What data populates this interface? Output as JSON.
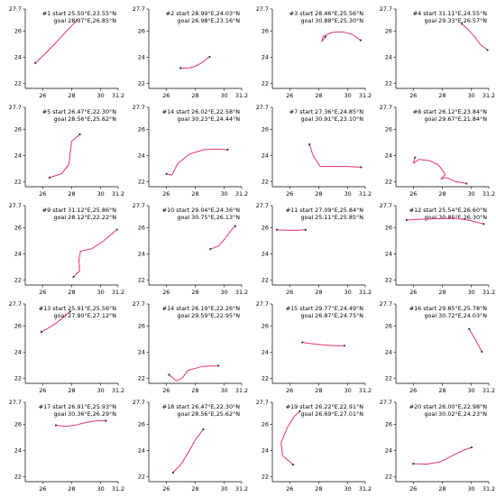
{
  "chart_data": {
    "type": "line",
    "layout": {
      "rows": 5,
      "cols": 4
    },
    "shared_axes": {
      "xlim": [
        24.8,
        31.2
      ],
      "ylim": [
        21.6,
        27.7
      ],
      "xticks": [
        26,
        28,
        30,
        31.2
      ],
      "yticks": [
        22,
        24,
        26,
        27.7
      ]
    },
    "line_color": "#e0356a",
    "axis_color": "#000000",
    "panels": [
      {
        "title_start": "#1 start 25.50°E,23.55°N",
        "title_goal": "goal 28.37°E,26.85°N",
        "x": [
          25.5,
          26.2,
          26.9,
          27.6,
          28.37
        ],
        "y": [
          23.55,
          24.3,
          25.1,
          25.95,
          26.85
        ]
      },
      {
        "title_start": "#2 start 28.99°E,24.03°N",
        "title_goal": "goal 26.98°E,23.16°N",
        "x": [
          28.99,
          28.5,
          28.0,
          27.5,
          26.98
        ],
        "y": [
          24.03,
          23.6,
          23.3,
          23.15,
          23.16
        ]
      },
      {
        "title_start": "#3 start 28.46°E,25.56°N",
        "title_goal": "goal 30.88°E,25.30°N",
        "x": [
          28.46,
          28.2,
          28.3,
          28.9,
          29.6,
          30.3,
          30.88
        ],
        "y": [
          25.56,
          25.2,
          25.6,
          25.9,
          25.95,
          25.75,
          25.3
        ]
      },
      {
        "title_start": "#4 start 31.11°E,24.55°N",
        "title_goal": "goal 29.33°E,26.57°N",
        "x": [
          31.11,
          30.6,
          30.2,
          29.8,
          29.33
        ],
        "y": [
          24.55,
          25.0,
          25.6,
          26.1,
          26.57
        ]
      },
      {
        "title_start": "#5 start 26.47°E,22.30°N",
        "title_goal": "goal 28.56°E,25.62°N",
        "x": [
          26.47,
          27.3,
          27.8,
          27.9,
          28.0,
          28.56
        ],
        "y": [
          22.3,
          22.6,
          23.3,
          24.2,
          25.1,
          25.62
        ]
      },
      {
        "title_start": "#14 start 26.02°E,22.58°N",
        "title_goal": "goal 30.23°E,24.44°N",
        "x": [
          26.02,
          26.4,
          26.8,
          27.6,
          28.6,
          29.5,
          30.23
        ],
        "y": [
          22.58,
          22.5,
          23.4,
          24.1,
          24.45,
          24.5,
          24.44
        ]
      },
      {
        "title_start": "#7 start 27.36°E,24.85°N",
        "title_goal": "goal 30.91°E,23.10°N",
        "x": [
          27.36,
          27.6,
          28.1,
          29.0,
          30.0,
          30.91
        ],
        "y": [
          24.85,
          24.0,
          23.15,
          23.15,
          23.15,
          23.1
        ]
      },
      {
        "title_start": "#8 start 26.12°E,23.84°N",
        "title_goal": "goal 29.67°E,21.84°N",
        "x": [
          26.12,
          26.0,
          26.4,
          27.1,
          27.7,
          28.0,
          28.2,
          27.9,
          28.3,
          28.9,
          29.67
        ],
        "y": [
          23.84,
          23.4,
          23.7,
          23.6,
          23.3,
          22.9,
          22.5,
          22.2,
          22.3,
          22.0,
          21.84
        ]
      },
      {
        "title_start": "#9 start 31.12°E,25.86°N",
        "title_goal": "goal 28.12°E,22.22°N",
        "x": [
          31.12,
          30.2,
          29.4,
          28.6,
          28.5,
          28.55,
          28.12
        ],
        "y": [
          25.86,
          25.0,
          24.4,
          24.2,
          23.5,
          22.7,
          22.22
        ]
      },
      {
        "title_start": "#10 start 29.04°E,24.36°N",
        "title_goal": "goal 30.75°E,26.13°N",
        "x": [
          29.04,
          29.6,
          30.0,
          30.4,
          30.75
        ],
        "y": [
          24.36,
          24.6,
          25.1,
          25.7,
          26.13
        ]
      },
      {
        "title_start": "#11 start 27.09°E,25.84°N",
        "title_goal": "goal 25.11°E,25.85°N",
        "x": [
          27.09,
          26.6,
          26.1,
          25.6,
          25.11
        ],
        "y": [
          25.84,
          25.8,
          25.8,
          25.82,
          25.85
        ]
      },
      {
        "title_start": "#12 start 25.54°E,26.60°N",
        "title_goal": "goal 30.85°E,26.30°N",
        "x": [
          25.54,
          26.6,
          27.8,
          28.8,
          29.7,
          30.85
        ],
        "y": [
          26.6,
          26.65,
          26.7,
          26.75,
          26.6,
          26.3
        ]
      },
      {
        "title_start": "#13 start 25.91°E,25.56°N",
        "title_goal": "goal 27.90°E,27.12°N",
        "x": [
          25.91,
          26.4,
          26.9,
          27.4,
          27.9
        ],
        "y": [
          25.56,
          25.85,
          26.2,
          26.65,
          27.12
        ]
      },
      {
        "title_start": "#14 start 26.19°E,22.26°N",
        "title_goal": "goal 29.59°E,22.95°N",
        "x": [
          26.19,
          26.7,
          27.1,
          27.5,
          28.5,
          29.59
        ],
        "y": [
          22.26,
          21.8,
          22.0,
          22.6,
          22.9,
          22.95
        ]
      },
      {
        "title_start": "#15 start 29.77°E,24.49°N",
        "title_goal": "goal 26.87°E,24.75°N",
        "x": [
          29.77,
          29.0,
          28.3,
          27.5,
          26.87
        ],
        "y": [
          24.49,
          24.5,
          24.55,
          24.65,
          24.75
        ]
      },
      {
        "title_start": "#16 start 29.85°E,25.78°N",
        "title_goal": "goal 30.72°E,24.03°N",
        "x": [
          29.85,
          30.1,
          30.35,
          30.55,
          30.72
        ],
        "y": [
          25.78,
          25.3,
          24.8,
          24.4,
          24.03
        ]
      },
      {
        "title_start": "#17 start 26.91°E,25.93°N",
        "title_goal": "goal 30.36°E,26.29°N",
        "x": [
          26.91,
          27.6,
          28.3,
          29.0,
          29.7,
          30.36
        ],
        "y": [
          25.93,
          25.85,
          25.95,
          26.15,
          26.28,
          26.29
        ]
      },
      {
        "title_start": "#18 start 26.47°E,22.30°N",
        "title_goal": "goal 28.56°E,25.62°N",
        "x": [
          26.47,
          27.0,
          27.5,
          28.0,
          28.56
        ],
        "y": [
          22.3,
          22.9,
          23.8,
          24.8,
          25.62
        ]
      },
      {
        "title_start": "#19 start 26.22°E,22.91°N",
        "title_goal": "goal 26.69°E,27.01°N",
        "x": [
          26.22,
          25.5,
          25.4,
          25.8,
          26.3,
          26.69
        ],
        "y": [
          22.91,
          23.6,
          24.6,
          25.7,
          26.6,
          27.01
        ]
      },
      {
        "title_start": "#20 start 26.00°E,22.98°N",
        "title_goal": "goal 30.02°E,24.23°N",
        "x": [
          26.0,
          26.9,
          27.8,
          28.7,
          29.4,
          30.02
        ],
        "y": [
          22.98,
          22.95,
          23.1,
          23.6,
          24.0,
          24.23
        ]
      }
    ]
  }
}
